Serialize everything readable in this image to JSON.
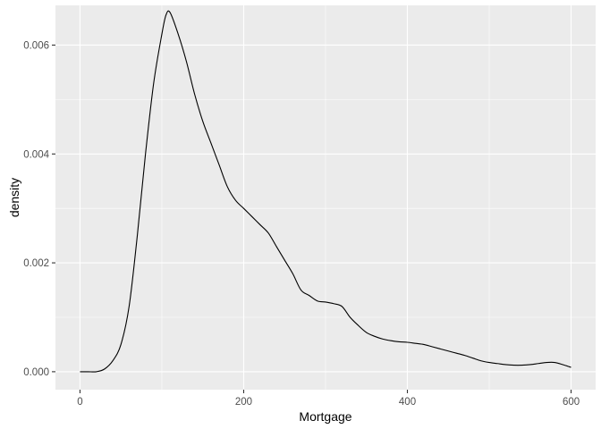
{
  "chart_data": {
    "type": "line",
    "title": "",
    "xlabel": "Mortgage",
    "ylabel": "density",
    "xlim": [
      -30,
      630
    ],
    "ylim": [
      -0.00033,
      0.00673
    ],
    "x_ticks": [
      0,
      200,
      400,
      600
    ],
    "x_tick_labels": [
      "0",
      "200",
      "400",
      "600"
    ],
    "y_ticks": [
      0,
      0.002,
      0.004,
      0.006
    ],
    "y_tick_labels": [
      "0.000",
      "0.002",
      "0.004",
      "0.006"
    ],
    "grid": true,
    "series": [
      {
        "x": [
          0,
          10,
          20,
          30,
          40,
          50,
          60,
          70,
          80,
          90,
          100,
          105,
          110,
          120,
          130,
          140,
          150,
          160,
          170,
          180,
          190,
          200,
          210,
          220,
          230,
          240,
          250,
          260,
          270,
          280,
          290,
          300,
          310,
          320,
          330,
          340,
          350,
          360,
          370,
          380,
          390,
          400,
          410,
          420,
          430,
          440,
          450,
          460,
          470,
          480,
          490,
          500,
          510,
          520,
          530,
          540,
          550,
          560,
          570,
          580,
          590,
          600
        ],
        "y": [
          0.0,
          0.0,
          0.0,
          5e-05,
          0.0002,
          0.0005,
          0.0012,
          0.0025,
          0.004,
          0.0053,
          0.0062,
          0.00655,
          0.0066,
          0.0062,
          0.0057,
          0.0051,
          0.0046,
          0.0042,
          0.0038,
          0.0034,
          0.00315,
          0.003,
          0.00285,
          0.0027,
          0.00255,
          0.0023,
          0.00205,
          0.0018,
          0.0015,
          0.0014,
          0.0013,
          0.00128,
          0.00125,
          0.0012,
          0.001,
          0.00085,
          0.00072,
          0.00065,
          0.0006,
          0.00057,
          0.00055,
          0.00054,
          0.00052,
          0.0005,
          0.00046,
          0.00042,
          0.00038,
          0.00034,
          0.0003,
          0.00025,
          0.0002,
          0.00017,
          0.00015,
          0.00013,
          0.00012,
          0.00012,
          0.00013,
          0.00015,
          0.00017,
          0.00017,
          0.00013,
          8e-05
        ]
      }
    ]
  }
}
